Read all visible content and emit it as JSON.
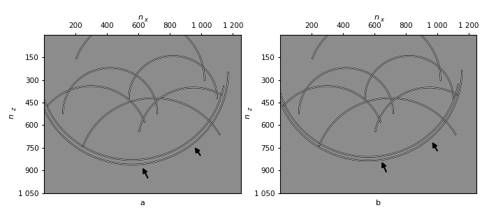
{
  "chart_data": [
    {
      "type": "image",
      "label": "a",
      "xlabel": {
        "text": "n",
        "subscript": "x"
      },
      "ylabel": {
        "text": "n",
        "subscript": "z"
      },
      "background": "#8c8c8c",
      "xlim": [
        0,
        1250
      ],
      "ylim": [
        1050,
        0
      ],
      "xticks": [
        200,
        400,
        600,
        800,
        {
          "value": 1000,
          "label": "1 000"
        },
        {
          "value": 1200,
          "label": "1 200"
        }
      ],
      "yticks": [
        150,
        300,
        450,
        600,
        750,
        900,
        {
          "value": 1050,
          "label": "1 050"
        }
      ],
      "tick_labels": true,
      "arcs": [
        {
          "center": [
            560,
            250
          ],
          "radius": 610,
          "theta": [
            0,
            180
          ]
        },
        {
          "center": [
            560,
            240
          ],
          "radius": 590,
          "theta": [
            10,
            170
          ]
        },
        {
          "center": [
            600,
            300
          ],
          "radius": 420,
          "theta": [
            200,
            360
          ]
        },
        {
          "center": [
            420,
            520
          ],
          "radius": 300,
          "theta": [
            180,
            360
          ]
        },
        {
          "center": [
            820,
            420
          ],
          "radius": 280,
          "theta": [
            180,
            360
          ]
        },
        {
          "center": [
            700,
            900
          ],
          "radius": 480,
          "theta": [
            200,
            330
          ]
        },
        {
          "center": [
            300,
            700
          ],
          "radius": 360,
          "theta": [
            220,
            340
          ]
        },
        {
          "center": [
            950,
            700
          ],
          "radius": 350,
          "theta": [
            190,
            300
          ]
        }
      ],
      "arrows": [
        {
          "tip": [
            620,
            870
          ],
          "tail": [
            665,
            960
          ]
        },
        {
          "tip": [
            950,
            735
          ],
          "tail": [
            1000,
            810
          ]
        }
      ]
    },
    {
      "type": "image",
      "label": "b",
      "xlabel": {
        "text": "n",
        "subscript": "x"
      },
      "ylabel": {
        "text": "n",
        "subscript": "z"
      },
      "background": "#8c8c8c",
      "xlim": [
        0,
        1250
      ],
      "ylim": [
        1050,
        0
      ],
      "xticks": [
        200,
        400,
        600,
        800,
        {
          "value": 1000,
          "label": "1 000"
        },
        {
          "value": 1200,
          "label": "1 200"
        }
      ],
      "yticks": [
        150,
        300,
        450,
        600,
        750,
        900,
        {
          "value": 1050,
          "label": "1 050"
        }
      ],
      "tick_labels": true,
      "arcs": [
        {
          "center": [
            560,
            240
          ],
          "radius": 595,
          "theta": [
            0,
            180
          ]
        },
        {
          "center": [
            560,
            230
          ],
          "radius": 580,
          "theta": [
            10,
            170
          ]
        },
        {
          "center": [
            600,
            300
          ],
          "radius": 420,
          "theta": [
            200,
            360
          ]
        },
        {
          "center": [
            420,
            520
          ],
          "radius": 300,
          "theta": [
            180,
            360
          ]
        },
        {
          "center": [
            820,
            420
          ],
          "radius": 280,
          "theta": [
            180,
            360
          ]
        },
        {
          "center": [
            700,
            900
          ],
          "radius": 480,
          "theta": [
            200,
            330
          ]
        },
        {
          "center": [
            300,
            700
          ],
          "radius": 360,
          "theta": [
            220,
            340
          ]
        },
        {
          "center": [
            950,
            700
          ],
          "radius": 350,
          "theta": [
            190,
            300
          ]
        }
      ],
      "arrows": [
        {
          "tip": [
            640,
            830
          ],
          "tail": [
            680,
            920
          ]
        },
        {
          "tip": [
            960,
            700
          ],
          "tail": [
            1005,
            780
          ]
        }
      ]
    }
  ]
}
